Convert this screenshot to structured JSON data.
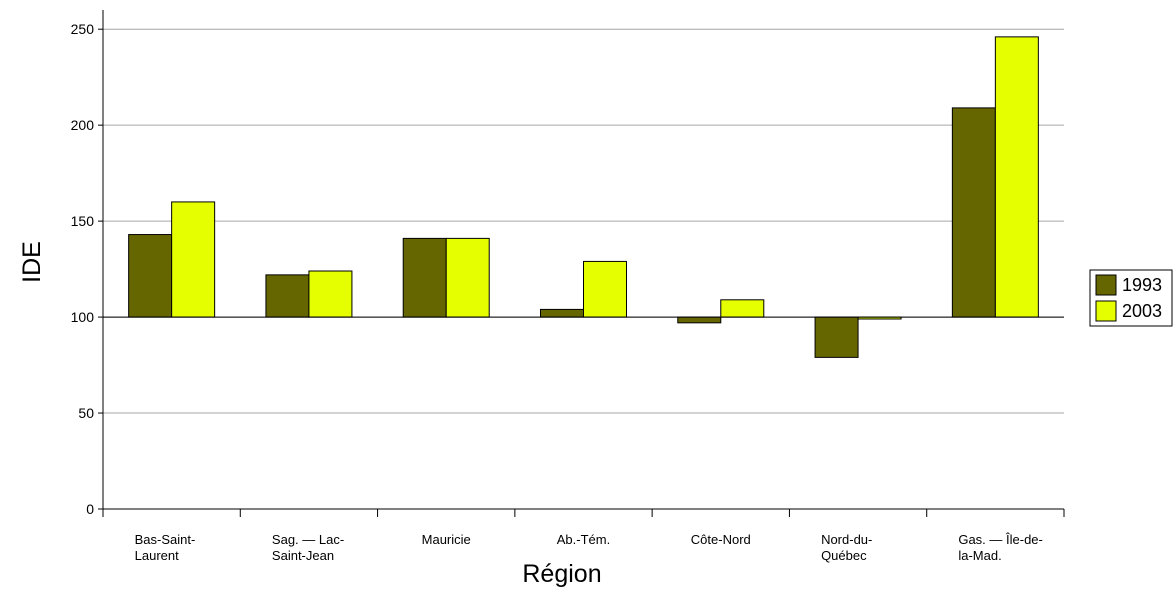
{
  "chart_data": {
    "type": "bar",
    "title": "",
    "xlabel": "Région",
    "ylabel": "IDE",
    "ylim": [
      0,
      260
    ],
    "yticks": [
      0,
      50,
      100,
      150,
      200,
      250
    ],
    "baseline": 100,
    "grid": true,
    "legend_position": "right",
    "categories": [
      [
        "Bas-Saint-",
        "Laurent"
      ],
      [
        "Sag. — Lac-",
        "Saint-Jean"
      ],
      [
        "Mauricie"
      ],
      [
        "Ab.-Tém."
      ],
      [
        "Côte-Nord"
      ],
      [
        "Nord-du-",
        "Québec"
      ],
      [
        "Gas. — Île-de-",
        "la-Mad."
      ]
    ],
    "series": [
      {
        "name": "1993",
        "color": "#666600",
        "values": [
          143,
          122,
          141,
          104,
          97,
          79,
          209
        ]
      },
      {
        "name": "2003",
        "color": "#E6FF00",
        "values": [
          160,
          124,
          141,
          129,
          109,
          99,
          246
        ]
      }
    ]
  }
}
